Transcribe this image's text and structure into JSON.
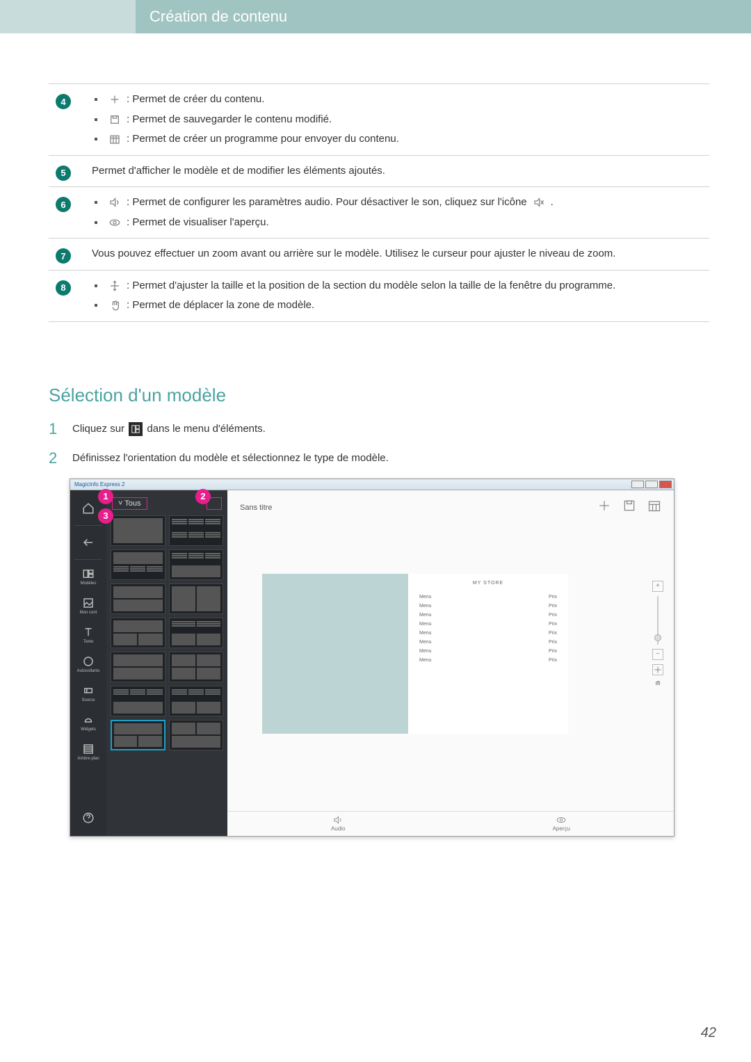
{
  "header": {
    "title": "Création de contenu"
  },
  "rows": [
    {
      "num": "4",
      "items": [
        {
          "icon": "plus",
          "text": " : Permet de créer du contenu."
        },
        {
          "icon": "save",
          "text": " : Permet de sauvegarder le contenu modifié."
        },
        {
          "icon": "schedule",
          "text": " : Permet de créer un programme pour envoyer du contenu."
        }
      ]
    },
    {
      "num": "5",
      "plain": "Permet d'afficher le modèle et de modifier les éléments ajoutés."
    },
    {
      "num": "6",
      "items": [
        {
          "icon": "sound",
          "text_pre": " : Permet de configurer les paramètres audio. Pour désactiver le son, cliquez sur l'icône ",
          "icon2": "sound-off",
          "text_post": "."
        },
        {
          "icon": "preview",
          "text": " : Permet de visualiser l'aperçu."
        }
      ]
    },
    {
      "num": "7",
      "plain": "Vous pouvez effectuer un zoom avant ou arrière sur le modèle. Utilisez le curseur pour ajuster le niveau de zoom."
    },
    {
      "num": "8",
      "items": [
        {
          "icon": "fit",
          "text": " : Permet d'ajuster la taille et la position de la section du modèle selon la taille de la fenêtre du programme."
        },
        {
          "icon": "hand",
          "text": " : Permet de déplacer la zone de modèle."
        }
      ]
    }
  ],
  "section_title": "Sélection d'un modèle",
  "steps": [
    {
      "num": "1",
      "pre": "Cliquez sur ",
      "post": " dans le menu d'éléments."
    },
    {
      "num": "2",
      "text": "Définissez l'orientation du modèle et sélectionnez le type de modèle."
    }
  ],
  "app": {
    "title": "MagicInfo Express 2",
    "doc_title": "Sans titre",
    "panel_label": "Tous",
    "rail": [
      "",
      "",
      "Modèles",
      "Mon cont",
      "Texte",
      "Autocollants",
      "Source",
      "Widgets",
      "Arrière-plan"
    ],
    "store_title": "MY STORE",
    "menu_label": "Menu",
    "price_label": "Prix",
    "menu_count": 8,
    "bottom": {
      "audio": "Audio",
      "preview": "Aperçu"
    }
  },
  "callouts": {
    "c1": "1",
    "c2": "2",
    "c3": "3"
  },
  "page_number": "42"
}
